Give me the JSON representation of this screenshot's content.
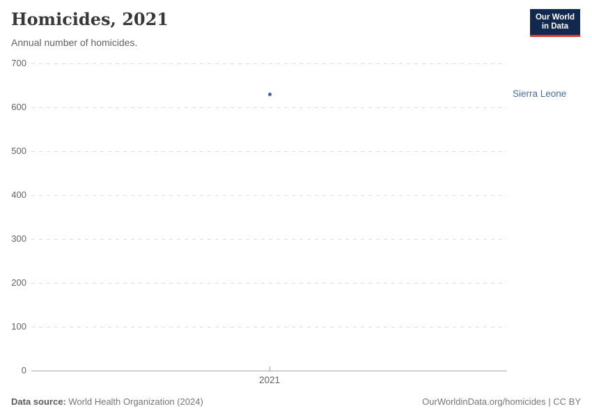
{
  "header": {
    "title": "Homicides, 2021",
    "subtitle": "Annual number of homicides.",
    "logo": {
      "line1": "Our World",
      "line2": "in Data",
      "bg_color": "#12284e",
      "accent_color": "#e0362d"
    }
  },
  "chart_data": {
    "type": "scatter",
    "title": "Homicides, 2021",
    "subtitle": "Annual number of homicides.",
    "xlabel": "",
    "ylabel": "",
    "x_ticks": [
      2021
    ],
    "y_ticks": [
      0,
      100,
      200,
      300,
      400,
      500,
      600,
      700
    ],
    "ylim": [
      0,
      700
    ],
    "grid": "horizontal-dashed",
    "legend_position": "right-of-point",
    "series": [
      {
        "name": "Sierra Leone",
        "color": "#3d63a6",
        "label_color": "#4c6a9c",
        "points": [
          {
            "x": 2021,
            "y": 630
          }
        ]
      }
    ]
  },
  "footer": {
    "data_source_label": "Data source:",
    "data_source": "World Health Organization (2024)",
    "attribution": "OurWorldinData.org/homicides | CC BY"
  },
  "colors": {
    "background": "#ffffff",
    "title": "#383838",
    "subtitle": "#616161",
    "tick_label": "#636363",
    "gridline": "#dcdcdc",
    "axis_line": "#a5a5a5",
    "footer_text": "#757575"
  }
}
